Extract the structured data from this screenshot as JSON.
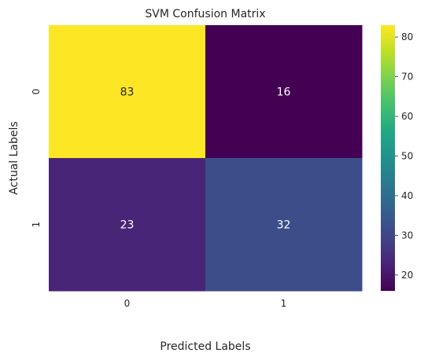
{
  "chart_data": {
    "type": "heatmap",
    "title": "SVM Confusion Matrix",
    "xlabel": "Predicted Labels",
    "ylabel": "Actual Labels",
    "x_categories": [
      "0",
      "1"
    ],
    "y_categories": [
      "0",
      "1"
    ],
    "values": [
      [
        83,
        16
      ],
      [
        23,
        32
      ]
    ],
    "colormap": "viridis",
    "colorbar": {
      "vmin": 16,
      "vmax": 83,
      "ticks": [
        20,
        30,
        40,
        50,
        60,
        70,
        80
      ]
    }
  }
}
